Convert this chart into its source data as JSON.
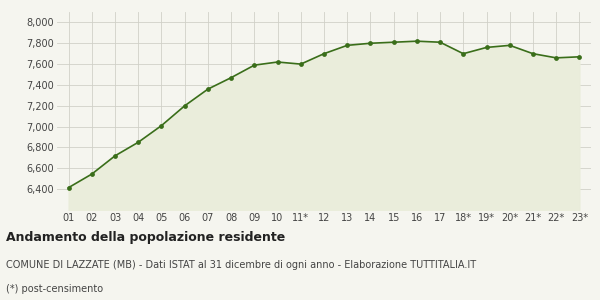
{
  "x_labels": [
    "01",
    "02",
    "03",
    "04",
    "05",
    "06",
    "07",
    "08",
    "09",
    "10",
    "11*",
    "12",
    "13",
    "14",
    "15",
    "16",
    "17",
    "18*",
    "19*",
    "20*",
    "21*",
    "22*",
    "23*"
  ],
  "values": [
    6415,
    6545,
    6720,
    6850,
    7010,
    7200,
    7360,
    7470,
    7590,
    7620,
    7600,
    7700,
    7780,
    7800,
    7810,
    7820,
    7810,
    7700,
    7760,
    7780,
    7700,
    7660,
    7670
  ],
  "line_color": "#3a6e1a",
  "fill_color": "#eaeddb",
  "dot_color": "#3a6e1a",
  "bg_color": "#f5f5ef",
  "grid_color": "#d0d0c8",
  "ylim": [
    6200,
    8100
  ],
  "yticks": [
    6400,
    6600,
    6800,
    7000,
    7200,
    7400,
    7600,
    7800,
    8000
  ],
  "title": "Andamento della popolazione residente",
  "subtitle": "COMUNE DI LAZZATE (MB) - Dati ISTAT al 31 dicembre di ogni anno - Elaborazione TUTTITALIA.IT",
  "footnote": "(*) post-censimento",
  "title_fontsize": 9,
  "subtitle_fontsize": 7,
  "footnote_fontsize": 7,
  "tick_fontsize": 7,
  "fill_baseline": 6200
}
